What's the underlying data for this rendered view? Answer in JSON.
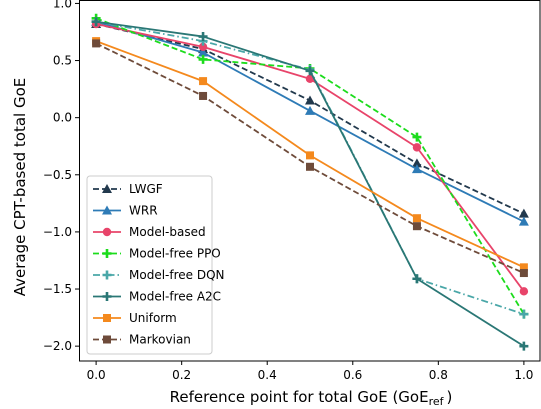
{
  "chart_data": {
    "type": "line",
    "title": "",
    "xlabel": "Reference point for total GoE (GoE",
    "xlabel_sub": "ref",
    "xlabel_end": ")",
    "ylabel": "Average CPT-based total GoE",
    "xlim": [
      -0.04,
      1.04
    ],
    "ylim": [
      -2.13,
      1.03
    ],
    "x_ticks": [
      0.0,
      0.2,
      0.4,
      0.6,
      0.8,
      1.0
    ],
    "x_tick_labels": [
      "0.0",
      "0.2",
      "0.4",
      "0.6",
      "0.8",
      "1.0"
    ],
    "y_ticks": [
      1.0,
      0.5,
      0.0,
      -0.5,
      -1.0,
      -1.5,
      -2.0
    ],
    "y_tick_labels": [
      "1.0",
      "0.5",
      "0.0",
      "−0.5",
      "−1.0",
      "−1.5",
      "−2.0"
    ],
    "grid": false,
    "legend_position": "lower-left",
    "x": [
      0.0,
      0.25,
      0.5,
      0.75,
      1.0
    ],
    "series": [
      {
        "name": "LWGF",
        "values": [
          0.82,
          0.6,
          0.15,
          -0.4,
          -0.84
        ],
        "color": "#22394d",
        "dash": "dashed",
        "marker": "triangle"
      },
      {
        "name": "WRR",
        "values": [
          0.84,
          0.57,
          0.06,
          -0.45,
          -0.91
        ],
        "color": "#2e7bb6",
        "dash": "solid",
        "marker": "triangle"
      },
      {
        "name": "Model-based",
        "values": [
          0.82,
          0.62,
          0.34,
          -0.26,
          -1.52
        ],
        "color": "#e8446a",
        "dash": "solid",
        "marker": "circle"
      },
      {
        "name": "Model-free PPO",
        "values": [
          0.87,
          0.51,
          0.43,
          -0.17,
          -1.72
        ],
        "color": "#1cdc1c",
        "dash": "dashed",
        "marker": "plus"
      },
      {
        "name": "Model-free DQN",
        "values": [
          0.84,
          0.67,
          0.42,
          -1.41,
          -1.72
        ],
        "color": "#4aa7a8",
        "dash": "dashdot",
        "marker": "plus"
      },
      {
        "name": "Model-free A2C",
        "values": [
          0.84,
          0.71,
          0.41,
          -1.41,
          -2.0
        ],
        "color": "#2a7775",
        "dash": "solid",
        "marker": "plus"
      },
      {
        "name": "Uniform",
        "values": [
          0.67,
          0.32,
          -0.33,
          -0.88,
          -1.31
        ],
        "color": "#f4891d",
        "dash": "solid",
        "marker": "square"
      },
      {
        "name": "Markovian",
        "values": [
          0.65,
          0.19,
          -0.43,
          -0.95,
          -1.36
        ],
        "color": "#6e4b3a",
        "dash": "dashed",
        "marker": "square"
      }
    ]
  }
}
